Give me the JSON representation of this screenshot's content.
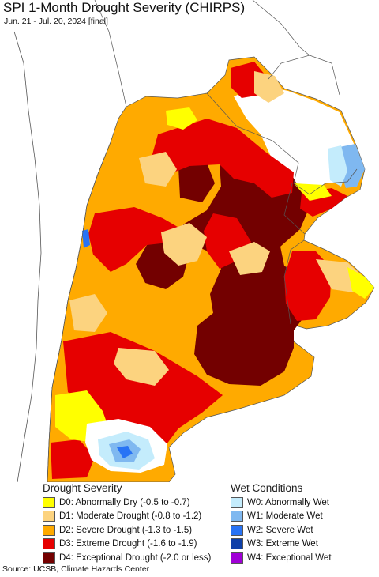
{
  "header": {
    "title": "SPI 1-Month Drought Severity (CHIRPS)",
    "subtitle": "Jun. 21 - Jul. 20, 2024 [final]"
  },
  "legend": {
    "drought_title": "Drought Severity",
    "drought_items": [
      {
        "label": "D0: Abnormally Dry (-0.5 to -0.7)",
        "color": "#ffff00"
      },
      {
        "label": "D1: Moderate Drought (-0.8 to -1.2)",
        "color": "#fcd37f"
      },
      {
        "label": "D2: Severe Drought (-1.3 to -1.5)",
        "color": "#ffaa00"
      },
      {
        "label": "D3: Extreme Drought (-1.6 to -1.9)",
        "color": "#e60000"
      },
      {
        "label": "D4: Exceptional Drought (-2.0 or less)",
        "color": "#730000"
      }
    ],
    "wet_title": "Wet Conditions",
    "wet_items": [
      {
        "label": "W0: Abnormally Wet",
        "color": "#c4ecfc"
      },
      {
        "label": "W1: Moderate Wet",
        "color": "#7fb8f0"
      },
      {
        "label": "W2: Severe Wet",
        "color": "#2873f5"
      },
      {
        "label": "W3: Extreme Wet",
        "color": "#0e3fa8"
      },
      {
        "label": "W4: Exceptional Wet",
        "color": "#a000d6"
      }
    ]
  },
  "footer": {
    "source": "Source: UCSB, Climate Hazards Center"
  }
}
